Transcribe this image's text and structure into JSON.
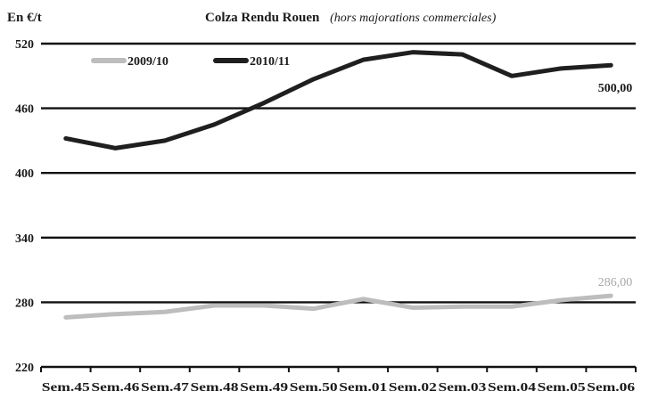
{
  "chart_data": {
    "type": "line",
    "title": "Colza Rendu Rouen",
    "subtitle": "(hors majorations commerciales)",
    "ylabel": "En €/t",
    "xlabel": "",
    "ylim": [
      220,
      520
    ],
    "yticks": [
      "520",
      "460",
      "400",
      "340",
      "280",
      "220"
    ],
    "grid": true,
    "legend_placement": "top-left",
    "categories": [
      "Sem.45",
      "Sem.46",
      "Sem.47",
      "Sem.48",
      "Sem.49",
      "Sem.50",
      "Sem.01",
      "Sem.02",
      "Sem.03",
      "Sem.04",
      "Sem.05",
      "Sem.06"
    ],
    "series": [
      {
        "name": "2009/10",
        "color": "#bdbdbd",
        "values": [
          266,
          269,
          271,
          277,
          277,
          274,
          283,
          275,
          276,
          276,
          282,
          286
        ],
        "end_label": "286,00"
      },
      {
        "name": "2010/11",
        "color": "#1f1f1f",
        "values": [
          432,
          423,
          430,
          445,
          465,
          487,
          505,
          512,
          510,
          490,
          497,
          500
        ],
        "end_label": "500,00"
      }
    ]
  }
}
